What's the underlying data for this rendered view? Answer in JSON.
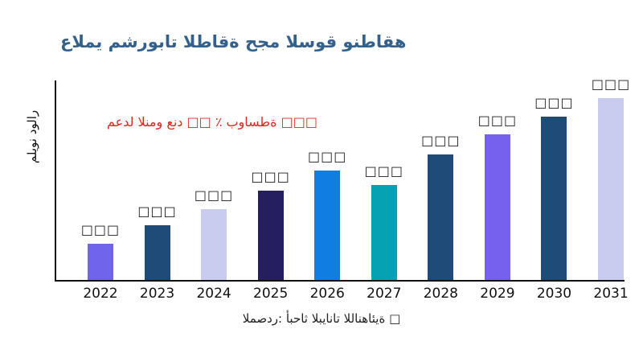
{
  "page": {
    "background_color": "#ffffff"
  },
  "chart_data": {
    "type": "bar",
    "title": "عالمي مشروبات الطاقة حجم السوق ونطاقه",
    "ylabel": "مليون دولار",
    "xlabel": "",
    "annotation": "معدل النمو عند □□ ٪ بواسطة □□□",
    "source": "المصدر: أبحاث البيانات اللانهائية □",
    "categories": [
      "2022",
      "2023",
      "2024",
      "2025",
      "2026",
      "2027",
      "2028",
      "2029",
      "2030",
      "2031"
    ],
    "bar_value_labels": [
      "□□□",
      "□□□",
      "□□□",
      "□□□",
      "□□□",
      "□□□",
      "□□□",
      "□□□",
      "□□□",
      "□□□"
    ],
    "values_relative_pct": [
      20,
      30,
      39,
      49,
      60,
      52,
      69,
      80,
      90,
      100
    ],
    "bar_colors": [
      "#7164EC",
      "#1F4B78",
      "#C9CCEF",
      "#251F5F",
      "#107DE3",
      "#04A2B3",
      "#1F4B78",
      "#7561EE",
      "#1F4B78",
      "#C9CCEF"
    ],
    "grid": "off",
    "legend": "none",
    "colors": {
      "title_text": "#33618C",
      "annotation_text": "#E5251F",
      "axis_line": "#111111",
      "value_label_text": "#1A1A1A",
      "tick_label_text": "#111111",
      "source_text": "#222222"
    }
  }
}
